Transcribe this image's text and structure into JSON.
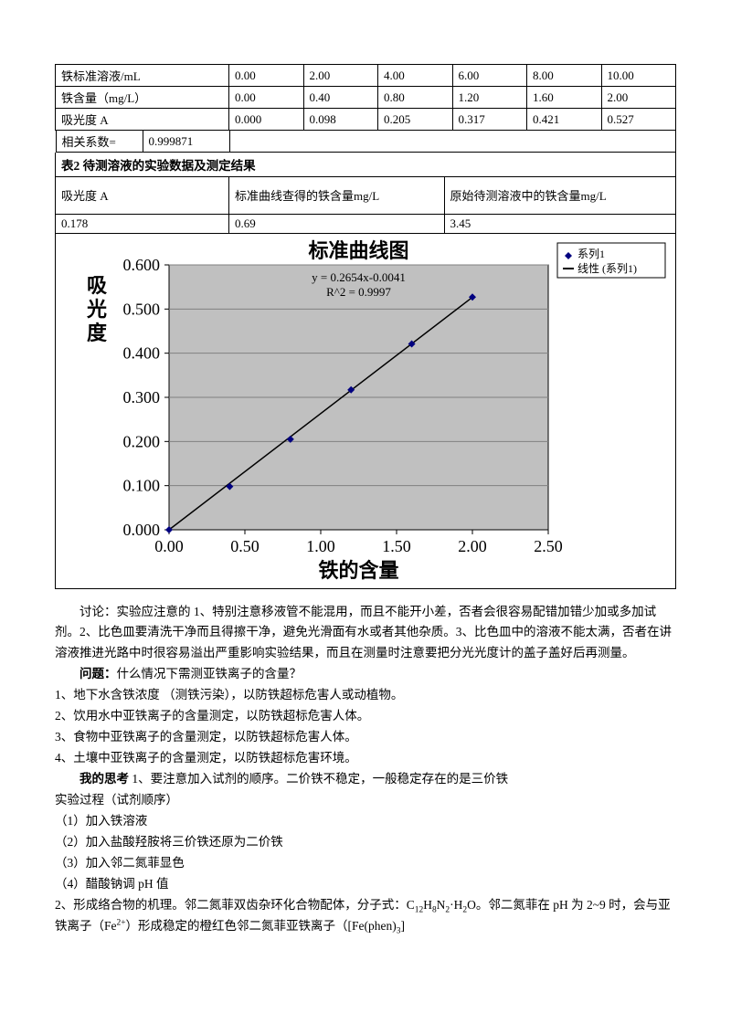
{
  "table1": {
    "rows": [
      {
        "label": "铁标准溶液/mL",
        "vals": [
          "0.00",
          "2.00",
          "4.00",
          "6.00",
          "8.00",
          "10.00"
        ]
      },
      {
        "label": "铁含量（mg/L）",
        "vals": [
          "0.00",
          "0.40",
          "0.80",
          "1.20",
          "1.60",
          "2.00"
        ]
      },
      {
        "label": "吸光度 A",
        "vals": [
          "0.000",
          "0.098",
          "0.205",
          "0.317",
          "0.421",
          "0.527"
        ]
      }
    ],
    "corr_label": "相关系数=",
    "corr_value": "0.999871"
  },
  "table2": {
    "title": "表2 待测溶液的实验数据及测定结果",
    "headers": [
      "吸光度 A",
      "标准曲线查得的铁含量mg/L",
      "原始待测溶液中的铁含量mg/L"
    ],
    "row": [
      "0.178",
      "0.69",
      "3.45"
    ]
  },
  "chart": {
    "title": "标准曲线图",
    "eq": "y = 0.2654x-0.0041",
    "r2": "R^2 = 0.9997",
    "ylabel": "吸光度",
    "xlabel": "铁的含量",
    "legend": {
      "series": "系列1",
      "trend": "线性 (系列1)"
    },
    "xlim": [
      0,
      2.5
    ],
    "ylim": [
      0,
      0.6
    ],
    "xticks": [
      "0.00",
      "0.50",
      "1.00",
      "1.50",
      "2.00",
      "2.50"
    ],
    "yticks": [
      "0.000",
      "0.100",
      "0.200",
      "0.300",
      "0.400",
      "0.500",
      "0.600"
    ],
    "plot_bg": "#c0c0c0",
    "grid_color": "#808080",
    "point_color": "#000080",
    "line_color": "#000000",
    "axis_font_size": 18,
    "label_font_size": 22,
    "title_font_size": 22,
    "points": [
      {
        "x": 0.0,
        "y": 0.0
      },
      {
        "x": 0.4,
        "y": 0.098
      },
      {
        "x": 0.8,
        "y": 0.205
      },
      {
        "x": 1.2,
        "y": 0.317
      },
      {
        "x": 1.6,
        "y": 0.421
      },
      {
        "x": 2.0,
        "y": 0.527
      }
    ],
    "trend": {
      "slope": 0.2654,
      "intercept": -0.0041
    }
  },
  "text": {
    "discuss": "讨论：实验应注意的 1、特别注意移液管不能混用，而且不能开小差，否者会很容易配错加错少加或多加试剂。2、比色皿要清洗干净而且得擦干净，避免光滑面有水或者其他杂质。3、比色皿中的溶液不能太满，否者在讲溶液推进光路中时很容易溢出严重影响实验结果，而且在测量时注意要把分光光度计的盖子盖好后再测量。",
    "q_label": "问题：",
    "q_body": "什么情况下需测亚铁离子的含量？",
    "items": [
      "1、地下水含铁浓度 （测铁污染），以防铁超标危害人或动植物。",
      "2、饮用水中亚铁离子的含量测定，以防铁超标危害人体。",
      "3、食物中亚铁离子的含量测定，以防铁超标危害人体。",
      "4、土壤中亚铁离子的含量测定，以防铁超标危害环境。"
    ],
    "think_label": "我的思考",
    "think_body": " 1、要注意加入试剂的顺序。二价铁不稳定，一般稳定存在的是三价铁",
    "proc_title": "实验过程（试剂顺序）",
    "steps": [
      "（1）加入铁溶液",
      "（2）加入盐酸羟胺将三价铁还原为二价铁",
      "（3）加入邻二氮菲显色",
      "（4）醋酸钠调 pH 值"
    ],
    "para2_pre": "2、形成络合物的机理。邻二氮菲双齿杂环化合物配体，分子式：C",
    "para2_mid": "。邻二氮菲在 pH 为 2~9 时，会与亚铁离子（Fe",
    "para2_end": "）形成稳定的橙红色邻二氮菲亚铁离子（[Fe(phen)"
  }
}
